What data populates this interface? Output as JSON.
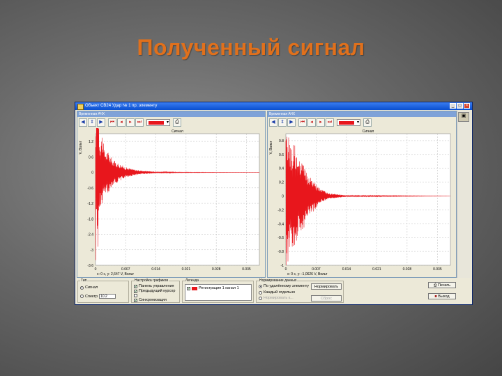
{
  "slide": {
    "title": "Полученный сигнал"
  },
  "window": {
    "title": "Объект СВ24 Удар № 1 пр. элементу",
    "controls": [
      "_",
      "□",
      "×"
    ],
    "left_pane": {
      "title": "Временная АЧХ",
      "chart_title": "Сигнал",
      "ylabel": "V, Вольт",
      "status": "x: 0 c, y: 2,647 V, Вольт"
    },
    "right_pane": {
      "title": "Временная АЧХ",
      "chart_title": "Сигнал",
      "ylabel": "V, Вольт",
      "status": "x: 0 c, y: -1,0626 V, Вольт"
    },
    "toolbar_icons": [
      "arrow-left-icon",
      "arrow-up-down-icon",
      "arrow-right-icon",
      "first-icon",
      "prev-icon",
      "next-icon",
      "last-icon"
    ],
    "color_accent": "#e8161c",
    "bottom": {
      "type_group": {
        "label": "Тип",
        "signal": "Сигнал",
        "spectrum": "Спектр",
        "spectrum_value": "10.2"
      },
      "display_group": {
        "label": "Настройка графиков",
        "options": [
          "Панель управления",
          "Предыдущий курсор",
          "",
          "Синхронизация"
        ]
      },
      "legend_group": {
        "label": "Легенда",
        "entry": "Регистрация 1 канал 1"
      },
      "norm_group": {
        "label": "Нормирование данных",
        "options": [
          "По удалённому элементу",
          "Каждый отдельно",
          "Нормировать к..."
        ],
        "normalize_button": "Нормировать",
        "reset_button": "Сброс"
      },
      "print_button": "Печать",
      "exit_button": "Выход"
    }
  },
  "chart_data": [
    {
      "type": "line",
      "title": "Сигнал",
      "ylabel": "V, Вольт",
      "xlabel": "",
      "x_ticks": [
        "0",
        "0.007",
        "0.014",
        "0.021",
        "0.028",
        "0.035"
      ],
      "y_ticks": [
        "1.2",
        "0.6",
        "0",
        "-0.6",
        "-1.2",
        "-1.8",
        "-2.4",
        "-3",
        "-3.6"
      ],
      "xlim": [
        0,
        0.038
      ],
      "ylim": [
        -3.6,
        1.5
      ],
      "grid": true,
      "series": [
        {
          "color": "#e8161c",
          "description": "decaying oscillation",
          "x": [
            0,
            0.0005,
            0.001,
            0.0015,
            0.002,
            0.003,
            0.004,
            0.005,
            0.007,
            0.01,
            0.014,
            0.02,
            0.038
          ],
          "y": [
            1.4,
            -3.4,
            1.2,
            -1.6,
            0.9,
            -0.8,
            0.5,
            -0.4,
            0.2,
            0.08,
            0.03,
            0.01,
            0
          ]
        }
      ]
    },
    {
      "type": "line",
      "title": "Сигнал",
      "ylabel": "V, Вольт",
      "xlabel": "",
      "x_ticks": [
        "0",
        "0.007",
        "0.014",
        "0.021",
        "0.028",
        "0.035"
      ],
      "y_ticks": [
        "0.8",
        "0.6",
        "0.4",
        "0.2",
        "0",
        "-0.2",
        "-0.4",
        "-0.6",
        "-0.8",
        "-1"
      ],
      "xlim": [
        0,
        0.038
      ],
      "ylim": [
        -1.0,
        0.9
      ],
      "grid": true,
      "series": [
        {
          "color": "#e8161c",
          "description": "noisy decaying oscillation",
          "x": [
            0,
            0.0005,
            0.001,
            0.002,
            0.003,
            0.004,
            0.005,
            0.006,
            0.008,
            0.01,
            0.014,
            0.038
          ],
          "y": [
            0.8,
            -1.0,
            0.7,
            -0.8,
            0.5,
            -0.5,
            0.3,
            -0.25,
            0.1,
            0.04,
            0.01,
            0
          ]
        }
      ]
    }
  ]
}
